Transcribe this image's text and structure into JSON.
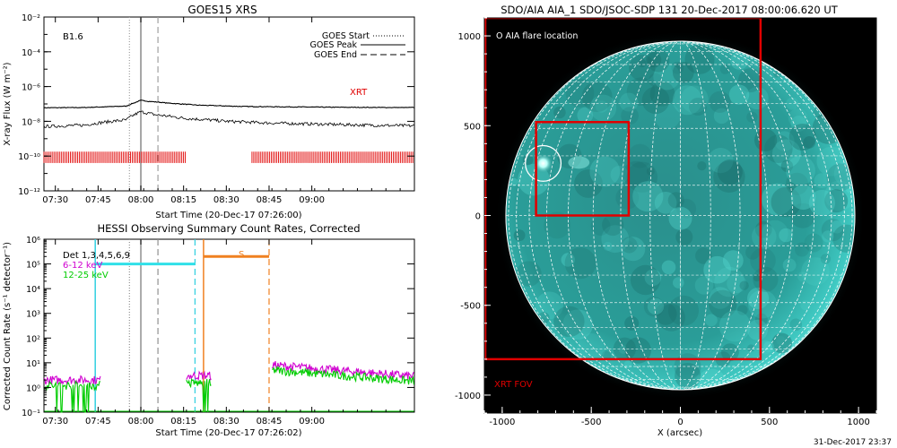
{
  "chart_data": [
    {
      "type": "line",
      "title": "GOES15 XRS",
      "xlabel": "Start Time (20-Dec-17 07:26:00)",
      "ylabel": "X-ray Flux (W m⁻²)",
      "yscale": "log",
      "ylim": [
        1e-12,
        0.01
      ],
      "xlim": [
        "07:26",
        "09:36"
      ],
      "x_ticks": [
        "07:30",
        "07:45",
        "08:00",
        "08:15",
        "08:30",
        "08:45",
        "09:00"
      ],
      "y_ticks": [
        "10⁻¹²",
        "10⁻¹⁰",
        "10⁻⁸",
        "10⁻⁶",
        "10⁻⁴",
        "10⁻²"
      ],
      "class_label": "B1.6",
      "legend": [
        {
          "name": "GOES Start",
          "style": "dotted"
        },
        {
          "name": "GOES Peak",
          "style": "solid"
        },
        {
          "name": "GOES End",
          "style": "dashed"
        }
      ],
      "legend_position": "top-right",
      "vlines": [
        {
          "name": "GOES Start",
          "x": "07:56",
          "style": "dotted"
        },
        {
          "name": "GOES Peak",
          "x": "08:00",
          "style": "solid"
        },
        {
          "name": "GOES End",
          "x": "08:06",
          "style": "dashed"
        }
      ],
      "series": [
        {
          "role": "long-channel",
          "x": [
            "07:26",
            "07:40",
            "07:55",
            "07:58",
            "08:00",
            "08:03",
            "08:10",
            "08:20",
            "08:35",
            "08:50",
            "09:05",
            "09:20",
            "09:36"
          ],
          "y": [
            6e-08,
            6.2e-08,
            7.5e-08,
            1.2e-07,
            1.6e-07,
            1.4e-07,
            1.1e-07,
            8.5e-08,
            7.2e-08,
            6.8e-08,
            6.5e-08,
            6.3e-08,
            6.2e-08
          ]
        },
        {
          "role": "short-channel",
          "x": [
            "07:26",
            "07:40",
            "07:55",
            "07:58",
            "08:00",
            "08:05",
            "08:15",
            "08:30",
            "08:45",
            "09:00",
            "09:20",
            "09:36"
          ],
          "y": [
            5e-09,
            6e-09,
            1.2e-08,
            2.5e-08,
            3.5e-08,
            2.4e-08,
            1.5e-08,
            1e-08,
            8e-09,
            7e-09,
            6e-09,
            5.5e-09
          ]
        }
      ],
      "xrt_label": "XRT",
      "xrt_intervals": [
        [
          "07:26",
          "08:16"
        ],
        [
          "08:39",
          "09:36"
        ]
      ],
      "xrt_color": "#e00000"
    },
    {
      "type": "line",
      "title": "HESSI Observing Summary Count Rates, Corrected",
      "xlabel": "Start Time (20-Dec-17 07:26:02)",
      "ylabel": "Corrected Count Rate (s⁻¹ detector⁻¹)",
      "yscale": "log",
      "ylim": [
        0.1,
        1000000
      ],
      "xlim": [
        "07:26",
        "09:36"
      ],
      "x_ticks": [
        "07:30",
        "07:45",
        "08:00",
        "08:15",
        "08:30",
        "08:45",
        "09:00"
      ],
      "y_ticks": [
        "10⁻¹",
        "10⁰",
        "10¹",
        "10²",
        "10³",
        "10⁴",
        "10⁵",
        "10⁶"
      ],
      "legend": [
        {
          "name": "Det 1,3,4,5,6,9",
          "color": "#000000"
        },
        {
          "name": "6-12 keV",
          "color": "#d000d0"
        },
        {
          "name": "12-25 keV",
          "color": "#00cc00"
        }
      ],
      "legend_position": "top-left",
      "saa_label": "S",
      "vlines": [
        {
          "x": "07:56",
          "style": "dotted",
          "color": "#909090"
        },
        {
          "x": "08:00",
          "style": "solid",
          "color": "#909090"
        },
        {
          "x": "08:06",
          "style": "dashed",
          "color": "#909090"
        },
        {
          "x": "07:44",
          "style": "solid",
          "color": "#30d0e0"
        },
        {
          "x": "08:19",
          "style": "dashed",
          "color": "#30d0e0"
        },
        {
          "x": "08:22",
          "style": "solid",
          "color": "#f08020"
        },
        {
          "x": "08:45",
          "style": "dashed",
          "color": "#f08020"
        }
      ],
      "flag_bars": [
        {
          "x": [
            "07:44",
            "08:19"
          ],
          "y": 100000,
          "color": "#30e0e8"
        },
        {
          "x": [
            "08:22",
            "08:45"
          ],
          "y": 200000,
          "color": "#f08020"
        }
      ],
      "data_segments": [
        {
          "x": [
            "07:26",
            "07:46"
          ],
          "level_6_12": 2.0,
          "level_12_25": 1.2
        },
        {
          "x": [
            "08:16",
            "08:25"
          ],
          "level_6_12": 3.0,
          "level_12_25": 1.5
        },
        {
          "x": [
            "08:46",
            "09:36"
          ],
          "level_6_12": 8.0,
          "level_12_25": 5.0
        }
      ]
    },
    {
      "type": "image",
      "title": "SDO/AIA AIA_1 SDO/JSOC-SDP 131 20-Dec-2017 08:00:06.620 UT",
      "xlabel": "X (arcsec)",
      "xlim": [
        -1100,
        1100
      ],
      "ylim": [
        -1100,
        1100
      ],
      "x_ticks": [
        -1000,
        -500,
        0,
        500,
        1000
      ],
      "y_ticks": [
        -1000,
        -500,
        0,
        500,
        1000
      ],
      "legend": [
        "O AIA flare location"
      ],
      "legend_position": "top-left",
      "solar_radius_arcsec": 975,
      "flare_location": {
        "x": -770,
        "y": 290,
        "radius": 100
      },
      "box_region": {
        "x": [
          -810,
          -290
        ],
        "y": [
          0,
          520
        ]
      },
      "xrt_fov_label": "XRT FOV",
      "xrt_fov": {
        "x": [
          -1100,
          450
        ],
        "y": [
          -800,
          1100
        ]
      },
      "disk_color": "#1aaea8",
      "box_color": "#e00000"
    }
  ],
  "footer_timestamp": "31-Dec-2017 23:37"
}
